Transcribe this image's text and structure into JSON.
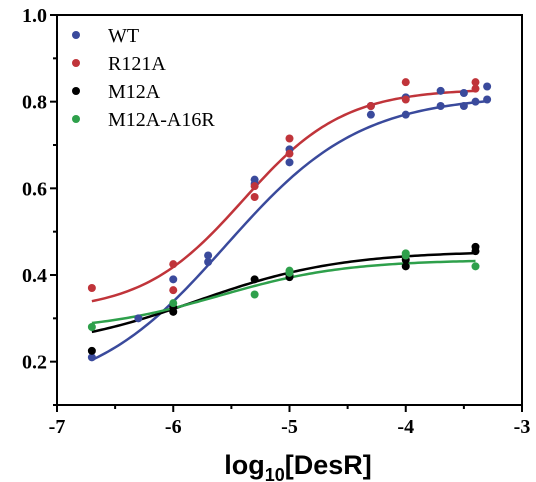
{
  "chart_data": {
    "type": "scatter",
    "xlabel": {
      "prefix": "log",
      "subscript": "10",
      "suffix": "[DesR]"
    },
    "ylabel": "",
    "xlim": [
      -7,
      -3
    ],
    "ylim": [
      0.1,
      1.0
    ],
    "x_ticks": [
      -7,
      -6,
      -5,
      -4,
      -3
    ],
    "y_ticks": [
      0.2,
      0.4,
      0.6,
      0.8,
      1.0
    ],
    "x_tick_labels": [
      "-7",
      "-6",
      "-5",
      "-4",
      "-3"
    ],
    "y_tick_labels": [
      "0.2",
      "0.4",
      "0.6",
      "0.8",
      "1.0"
    ],
    "grid": false,
    "legend_position": "top-left",
    "series": [
      {
        "name": "WT",
        "color": "#3a4a9c",
        "points": [
          [
            -6.7,
            0.21
          ],
          [
            -6.3,
            0.3
          ],
          [
            -6.0,
            0.39
          ],
          [
            -5.7,
            0.43
          ],
          [
            -5.7,
            0.445
          ],
          [
            -5.3,
            0.61
          ],
          [
            -5.3,
            0.62
          ],
          [
            -5.0,
            0.66
          ],
          [
            -5.0,
            0.69
          ],
          [
            -4.3,
            0.77
          ],
          [
            -4.3,
            0.79
          ],
          [
            -4.0,
            0.77
          ],
          [
            -4.0,
            0.81
          ],
          [
            -3.7,
            0.79
          ],
          [
            -3.7,
            0.825
          ],
          [
            -3.5,
            0.79
          ],
          [
            -3.5,
            0.82
          ],
          [
            -3.4,
            0.8
          ],
          [
            -3.3,
            0.835
          ],
          [
            -3.3,
            0.805
          ]
        ],
        "fit": {
          "bottom": 0.12,
          "top": 0.815,
          "logEC50": -5.55,
          "hill": 0.75
        }
      },
      {
        "name": "R121A",
        "color": "#c0343a",
        "points": [
          [
            -6.7,
            0.37
          ],
          [
            -6.0,
            0.365
          ],
          [
            -6.0,
            0.425
          ],
          [
            -5.3,
            0.58
          ],
          [
            -5.3,
            0.605
          ],
          [
            -5.0,
            0.715
          ],
          [
            -5.0,
            0.68
          ],
          [
            -4.3,
            0.79
          ],
          [
            -4.0,
            0.805
          ],
          [
            -4.0,
            0.845
          ],
          [
            -3.4,
            0.845
          ],
          [
            -3.4,
            0.83
          ]
        ],
        "fit": {
          "bottom": 0.315,
          "top": 0.83,
          "logEC50": -5.4,
          "hill": 1.0
        }
      },
      {
        "name": "M12A",
        "color": "#000000",
        "points": [
          [
            -6.7,
            0.225
          ],
          [
            -6.0,
            0.315
          ],
          [
            -6.0,
            0.325
          ],
          [
            -5.3,
            0.39
          ],
          [
            -5.0,
            0.395
          ],
          [
            -5.0,
            0.4
          ],
          [
            -4.0,
            0.42
          ],
          [
            -4.0,
            0.435
          ],
          [
            -3.4,
            0.455
          ],
          [
            -3.4,
            0.465
          ]
        ],
        "fit": {
          "bottom": 0.225,
          "top": 0.455,
          "logEC50": -5.8,
          "hill": 0.7
        }
      },
      {
        "name": "M12A-A16R",
        "color": "#2ea04b",
        "points": [
          [
            -6.7,
            0.28
          ],
          [
            -6.0,
            0.335
          ],
          [
            -5.3,
            0.355
          ],
          [
            -5.0,
            0.405
          ],
          [
            -5.0,
            0.41
          ],
          [
            -4.0,
            0.445
          ],
          [
            -4.0,
            0.45
          ],
          [
            -3.4,
            0.42
          ]
        ],
        "fit": {
          "bottom": 0.27,
          "top": 0.435,
          "logEC50": -5.6,
          "hill": 0.8
        }
      }
    ]
  }
}
